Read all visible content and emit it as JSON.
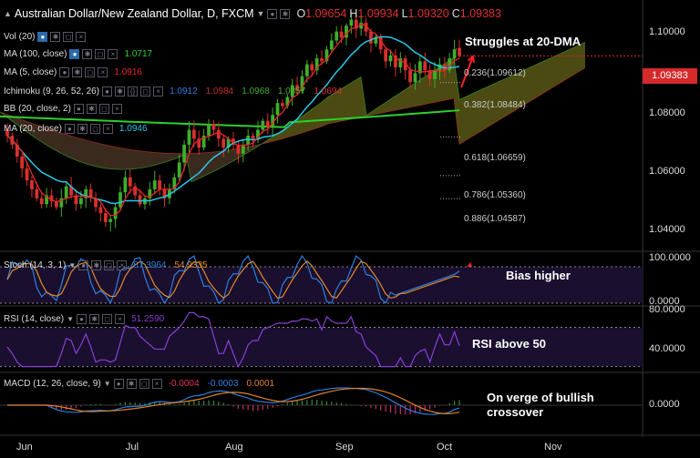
{
  "header": {
    "symbol": "Australian Dollar/New Zealand Dollar, D, FXCM",
    "o_label": "O",
    "o_value": "1.09654",
    "h_label": "H",
    "h_value": "1.09934",
    "l_label": "L",
    "l_value": "1.09320",
    "c_label": "C",
    "c_value": "1.09383"
  },
  "indicators": {
    "vol": "Vol (20)",
    "ma100": "MA (100, close)",
    "ma100_value": "1.0717",
    "ma5": "MA (5, close)",
    "ma5_value": "1.0916",
    "ichimoku": "Ichimoku (9, 26, 52, 26)",
    "ichimoku_values": [
      "1.0912",
      "1.0984",
      "1.0968",
      "1.0857",
      "1.0694"
    ],
    "bb": "BB (20, close, 2)",
    "ma20": "MA (20, close)",
    "ma20_value": "1.0946"
  },
  "annotations": {
    "main": "Struggles at 20-DMA",
    "stoch": "Bias higher",
    "rsi": "RSI above 50",
    "macd": "On verge of bullish crossover"
  },
  "last_price": "1.09383",
  "colors": {
    "bg": "#000000",
    "up": "#3fae2a",
    "down": "#d9302c",
    "ma20": "#28c8e8",
    "ma100": "#2bd12b",
    "ma5": "#e8262a",
    "cloud_bull": "#4a4a12",
    "cloud_bear": "#3a2a1e",
    "stoch_k": "#2d7fe0",
    "stoch_d": "#e08a2a",
    "rsi": "#8a3fd6",
    "macd": "#2d7fe0",
    "signal": "#e0802a",
    "panel_fill": "#1a0f2e"
  },
  "chart_data": [
    {
      "type": "candlestick",
      "title": "Australian Dollar/New Zealand Dollar, D, FXCM",
      "ylim": [
        1.03,
        1.112
      ],
      "yticks": [
        "1.10000",
        "1.08000",
        "1.06000",
        "1.04000"
      ],
      "xticks": [
        "Jun",
        "Jul",
        "Aug",
        "Sep",
        "Oct",
        "Nov"
      ],
      "last_bar": {
        "open": 1.09654,
        "high": 1.09934,
        "low": 1.0932,
        "close": 1.09383
      },
      "close_path": [
        1.067,
        1.064,
        1.06,
        1.056,
        1.052,
        1.049,
        1.046,
        1.044,
        1.047,
        1.045,
        1.043,
        1.046,
        1.05,
        1.047,
        1.044,
        1.046,
        1.049,
        1.046,
        1.043,
        1.041,
        1.038,
        1.039,
        1.043,
        1.048,
        1.053,
        1.05,
        1.047,
        1.044,
        1.046,
        1.049,
        1.052,
        1.049,
        1.046,
        1.049,
        1.053,
        1.058,
        1.064,
        1.069,
        1.066,
        1.063,
        1.067,
        1.071,
        1.069,
        1.066,
        1.063,
        1.066,
        1.064,
        1.061,
        1.064,
        1.067,
        1.066,
        1.069,
        1.072,
        1.07,
        1.074,
        1.078,
        1.077,
        1.08,
        1.084,
        1.082,
        1.087,
        1.091,
        1.089,
        1.093,
        1.092,
        1.096,
        1.099,
        1.102,
        1.1,
        1.104,
        1.106,
        1.103,
        1.105,
        1.102,
        1.098,
        1.1,
        1.096,
        1.092,
        1.094,
        1.09,
        1.093,
        1.089,
        1.085,
        1.088,
        1.092,
        1.089,
        1.086,
        1.089,
        1.091,
        1.089,
        1.093,
        1.096,
        1.0938
      ],
      "fibonacci": [
        {
          "label": "0.236(1.09612)",
          "value": 1.09612
        },
        {
          "label": "0.382(1.08484)",
          "value": 1.08484
        },
        {
          "label": "0.618(1.06659)",
          "value": 1.06659
        },
        {
          "label": "0.786(1.05360)",
          "value": 1.0536
        },
        {
          "label": "0.886(1.04587)",
          "value": 1.04587
        }
      ]
    },
    {
      "type": "line",
      "title": "Stoch (14, 3, 1)",
      "ylim": [
        0,
        100
      ],
      "yticks": [
        "100.0000",
        "0.0000"
      ],
      "series": [
        {
          "name": "%K",
          "value_label": "67.3964",
          "last": 67.3964
        },
        {
          "name": "%D",
          "value_label": "54.9335",
          "last": 54.9335
        }
      ]
    },
    {
      "type": "line",
      "title": "RSI (14, close)",
      "ylim": [
        25,
        90
      ],
      "yticks": [
        "80.0000",
        "40.0000"
      ],
      "series": [
        {
          "name": "RSI",
          "value_label": "51.2590",
          "last": 51.259
        }
      ]
    },
    {
      "type": "line",
      "title": "MACD (12, 26, close, 9)",
      "yticks": [
        "0.0000"
      ],
      "series": [
        {
          "name": "Histogram",
          "value_label": "-0.0004",
          "last": -0.0004
        },
        {
          "name": "MACD",
          "value_label": "-0.0003",
          "last": -0.0003
        },
        {
          "name": "Signal",
          "value_label": "0.0001",
          "last": 0.0001
        }
      ]
    }
  ]
}
